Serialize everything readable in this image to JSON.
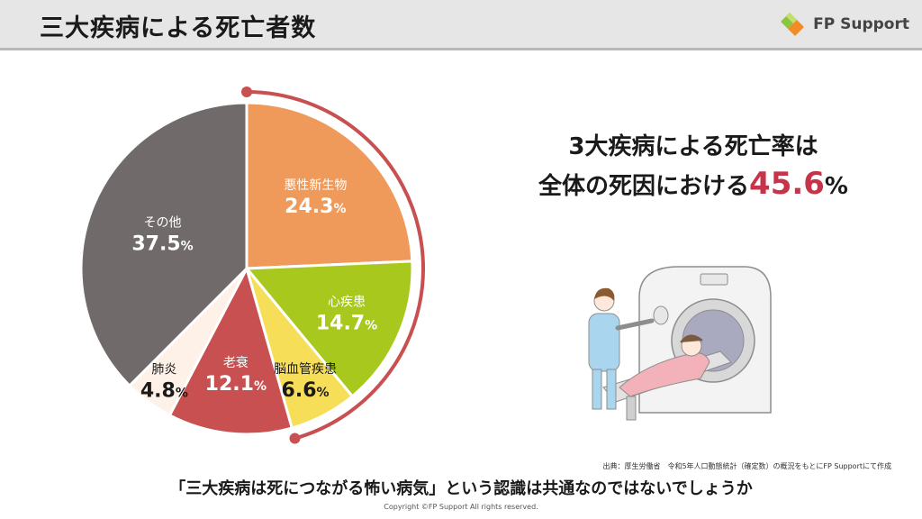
{
  "header": {
    "title": "三大疾病による死亡者数"
  },
  "brand": {
    "name": "FP Support"
  },
  "headline": {
    "line1": "3大疾病による死亡率は",
    "line2_prefix": "全体の死因における",
    "line2_value": "45.6",
    "line2_unit": "%"
  },
  "chart_data": {
    "type": "pie",
    "unit": "%",
    "slices": [
      {
        "label": "悪性新生物",
        "value": 24.3,
        "color": "#ef9a5a",
        "text_color": "#ffffff"
      },
      {
        "label": "心疾患",
        "value": 14.7,
        "color": "#a8c81e",
        "text_color": "#ffffff"
      },
      {
        "label": "脳血管疾患",
        "value": 6.6,
        "color": "#f7de58",
        "text_color": "#1a1a1a"
      },
      {
        "label": "老衰",
        "value": 12.1,
        "color": "#c95050",
        "text_color": "#ffffff"
      },
      {
        "label": "肺炎",
        "value": 4.8,
        "color": "#fdf1e8",
        "text_color": "#1a1a1a"
      },
      {
        "label": "その他",
        "value": 37.5,
        "color": "#706a6a",
        "text_color": "#ffffff"
      }
    ],
    "highlight_color": "#c95050"
  },
  "source": "出典：厚生労働省　令和5年人口動態統計（確定数）の概況をもとにFP Supportにて作成",
  "footer": {
    "message": "「三大疾病は死につながる怖い病気」という認識は共通なのではないでしょうか",
    "copyright": "Copyright ©FP Support All rights reserved."
  }
}
